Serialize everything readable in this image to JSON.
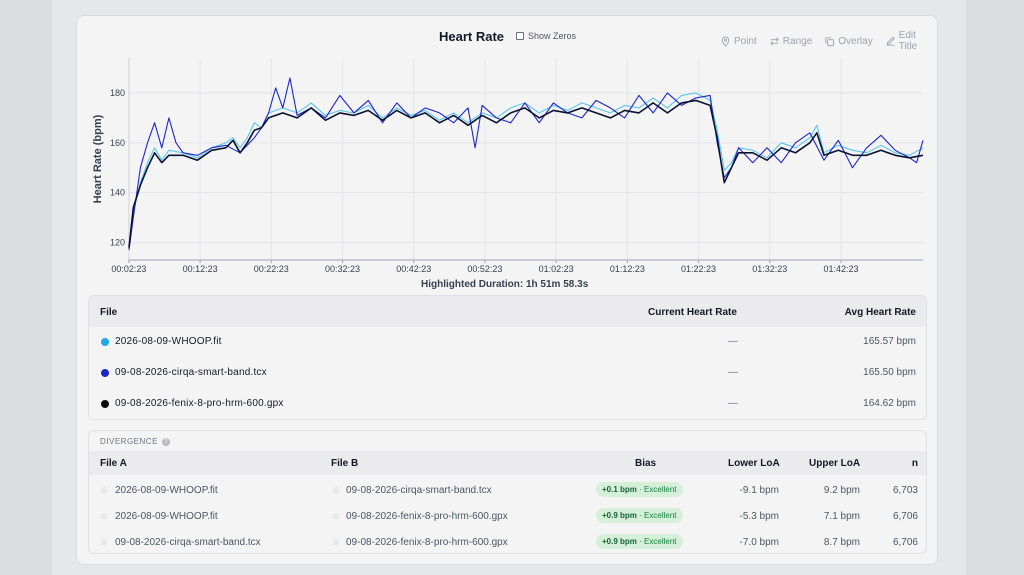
{
  "chart": {
    "title": "Heart Rate",
    "show_zeros_label": "Show Zeros",
    "tools": [
      {
        "label": "Point",
        "icon": "pin-icon"
      },
      {
        "label": "Range",
        "icon": "arrows-icon"
      },
      {
        "label": "Overlay",
        "icon": "copy-icon"
      },
      {
        "label": "Edit Title",
        "icon": "edit-icon"
      }
    ],
    "highlighted_duration": "Highlighted Duration: 1h 51m 58.3s"
  },
  "chart_data": {
    "type": "line",
    "ylabel": "Heart Rate (bpm)",
    "xlabel": "",
    "ylim": [
      113,
      194
    ],
    "y_ticks": [
      120,
      140,
      160,
      180
    ],
    "x_ticks": [
      "00:02:23",
      "00:12:23",
      "00:22:23",
      "00:32:23",
      "00:42:23",
      "00:52:23",
      "01:02:23",
      "01:12:23",
      "01:22:23",
      "01:32:23",
      "01:42:23"
    ],
    "x_range_minutes": [
      2.4,
      113.9
    ],
    "grid": true,
    "series": [
      {
        "name": "2026-08-09-WHOOP.fit",
        "color": "#5bc6ea",
        "points": [
          [
            2.4,
            118
          ],
          [
            3,
            132
          ],
          [
            4,
            144
          ],
          [
            5,
            152
          ],
          [
            6,
            158
          ],
          [
            7,
            153
          ],
          [
            8,
            157
          ],
          [
            10,
            156
          ],
          [
            12,
            154
          ],
          [
            14,
            158
          ],
          [
            16,
            160
          ],
          [
            17,
            162
          ],
          [
            18,
            158
          ],
          [
            19,
            162
          ],
          [
            20,
            168
          ],
          [
            21,
            166
          ],
          [
            22,
            172
          ],
          [
            24,
            174
          ],
          [
            26,
            172
          ],
          [
            28,
            176
          ],
          [
            30,
            171
          ],
          [
            32,
            173
          ],
          [
            34,
            172
          ],
          [
            36,
            175
          ],
          [
            38,
            170
          ],
          [
            40,
            174
          ],
          [
            42,
            171
          ],
          [
            44,
            173
          ],
          [
            46,
            169
          ],
          [
            48,
            172
          ],
          [
            50,
            168
          ],
          [
            52,
            172
          ],
          [
            54,
            170
          ],
          [
            56,
            174
          ],
          [
            58,
            176
          ],
          [
            60,
            172
          ],
          [
            62,
            175
          ],
          [
            64,
            173
          ],
          [
            66,
            176
          ],
          [
            68,
            174
          ],
          [
            70,
            172
          ],
          [
            72,
            175
          ],
          [
            74,
            174
          ],
          [
            76,
            178
          ],
          [
            78,
            174
          ],
          [
            80,
            179
          ],
          [
            82,
            180
          ],
          [
            84,
            177
          ],
          [
            85,
            165
          ],
          [
            86,
            149
          ],
          [
            87,
            152
          ],
          [
            88,
            158
          ],
          [
            90,
            157
          ],
          [
            92,
            154
          ],
          [
            94,
            160
          ],
          [
            96,
            158
          ],
          [
            98,
            162
          ],
          [
            99,
            167
          ],
          [
            100,
            156
          ],
          [
            102,
            159
          ],
          [
            104,
            157
          ],
          [
            106,
            156
          ],
          [
            108,
            159
          ],
          [
            110,
            156
          ],
          [
            112,
            155
          ],
          [
            113.9,
            158
          ]
        ]
      },
      {
        "name": "09-08-2026-cirqa-smart-band.tcx",
        "color": "#1d27c9",
        "points": [
          [
            2.4,
            117
          ],
          [
            3,
            130
          ],
          [
            4,
            150
          ],
          [
            5,
            160
          ],
          [
            6,
            168
          ],
          [
            7,
            158
          ],
          [
            8,
            170
          ],
          [
            9,
            160
          ],
          [
            10,
            156
          ],
          [
            12,
            155
          ],
          [
            14,
            158
          ],
          [
            16,
            159
          ],
          [
            18,
            156
          ],
          [
            20,
            162
          ],
          [
            21,
            166
          ],
          [
            22,
            172
          ],
          [
            23,
            182
          ],
          [
            24,
            174
          ],
          [
            25,
            186
          ],
          [
            26,
            171
          ],
          [
            28,
            174
          ],
          [
            30,
            170
          ],
          [
            32,
            179
          ],
          [
            34,
            172
          ],
          [
            36,
            177
          ],
          [
            38,
            168
          ],
          [
            40,
            176
          ],
          [
            42,
            170
          ],
          [
            44,
            174
          ],
          [
            46,
            172
          ],
          [
            48,
            168
          ],
          [
            50,
            174
          ],
          [
            51,
            158
          ],
          [
            52,
            175
          ],
          [
            54,
            170
          ],
          [
            56,
            168
          ],
          [
            58,
            176
          ],
          [
            60,
            168
          ],
          [
            62,
            176
          ],
          [
            64,
            172
          ],
          [
            66,
            170
          ],
          [
            68,
            177
          ],
          [
            70,
            174
          ],
          [
            72,
            170
          ],
          [
            74,
            179
          ],
          [
            76,
            172
          ],
          [
            78,
            180
          ],
          [
            80,
            175
          ],
          [
            82,
            178
          ],
          [
            84,
            179
          ],
          [
            85,
            160
          ],
          [
            86,
            146
          ],
          [
            87,
            150
          ],
          [
            88,
            158
          ],
          [
            90,
            152
          ],
          [
            92,
            158
          ],
          [
            94,
            152
          ],
          [
            96,
            160
          ],
          [
            98,
            164
          ],
          [
            100,
            153
          ],
          [
            102,
            161
          ],
          [
            104,
            150
          ],
          [
            106,
            158
          ],
          [
            108,
            163
          ],
          [
            110,
            157
          ],
          [
            112,
            154
          ],
          [
            113,
            152
          ],
          [
            113.9,
            161
          ]
        ]
      },
      {
        "name": "09-08-2026-fenix-8-pro-hrm-600.gpx",
        "color": "#0b1230",
        "points": [
          [
            2.4,
            118
          ],
          [
            3,
            134
          ],
          [
            4,
            143
          ],
          [
            5,
            150
          ],
          [
            6,
            156
          ],
          [
            7,
            152
          ],
          [
            8,
            155
          ],
          [
            10,
            155
          ],
          [
            12,
            153
          ],
          [
            14,
            157
          ],
          [
            16,
            158
          ],
          [
            17,
            161
          ],
          [
            18,
            156
          ],
          [
            19,
            160
          ],
          [
            20,
            165
          ],
          [
            21,
            166
          ],
          [
            22,
            170
          ],
          [
            24,
            172
          ],
          [
            26,
            170
          ],
          [
            28,
            174
          ],
          [
            30,
            169
          ],
          [
            32,
            172
          ],
          [
            34,
            171
          ],
          [
            36,
            173
          ],
          [
            38,
            169
          ],
          [
            40,
            173
          ],
          [
            42,
            170
          ],
          [
            44,
            172
          ],
          [
            46,
            168
          ],
          [
            48,
            171
          ],
          [
            50,
            167
          ],
          [
            52,
            171
          ],
          [
            54,
            168
          ],
          [
            56,
            172
          ],
          [
            58,
            174
          ],
          [
            60,
            170
          ],
          [
            62,
            173
          ],
          [
            64,
            172
          ],
          [
            66,
            174
          ],
          [
            68,
            172
          ],
          [
            70,
            170
          ],
          [
            72,
            173
          ],
          [
            74,
            172
          ],
          [
            76,
            176
          ],
          [
            78,
            172
          ],
          [
            80,
            176
          ],
          [
            82,
            177
          ],
          [
            84,
            175
          ],
          [
            85,
            162
          ],
          [
            86,
            144
          ],
          [
            87,
            150
          ],
          [
            88,
            156
          ],
          [
            90,
            156
          ],
          [
            92,
            153
          ],
          [
            94,
            158
          ],
          [
            96,
            156
          ],
          [
            98,
            160
          ],
          [
            99,
            164
          ],
          [
            100,
            155
          ],
          [
            102,
            157
          ],
          [
            104,
            155
          ],
          [
            106,
            155
          ],
          [
            108,
            157
          ],
          [
            110,
            155
          ],
          [
            112,
            154
          ],
          [
            113.9,
            155
          ]
        ]
      }
    ]
  },
  "files": {
    "headers": {
      "file": "File",
      "current": "Current Heart Rate",
      "avg": "Avg Heart Rate"
    },
    "rows": [
      {
        "name": "2026-08-09-WHOOP.fit",
        "color": "#1fa7e6",
        "current": "—",
        "avg": "165.57 bpm"
      },
      {
        "name": "09-08-2026-cirqa-smart-band.tcx",
        "color": "#1d27c9",
        "current": "—",
        "avg": "165.50 bpm"
      },
      {
        "name": "09-08-2026-fenix-8-pro-hrm-600.gpx",
        "color": "#0b0b0b",
        "current": "—",
        "avg": "164.62 bpm"
      }
    ]
  },
  "divergence": {
    "label": "DIVERGENCE",
    "headers": {
      "file_a": "File A",
      "file_b": "File B",
      "bias": "Bias",
      "lower": "Lower LoA",
      "upper": "Upper LoA",
      "n": "n"
    },
    "rows": [
      {
        "file_a": "2026-08-09-WHOOP.fit",
        "file_b": "09-08-2026-cirqa-smart-band.tcx",
        "bias_value": "+0.1 bpm",
        "bias_rating": "· Excellent",
        "lower": "-9.1 bpm",
        "upper": "9.2 bpm",
        "n": "6,703"
      },
      {
        "file_a": "2026-08-09-WHOOP.fit",
        "file_b": "09-08-2026-fenix-8-pro-hrm-600.gpx",
        "bias_value": "+0.9 bpm",
        "bias_rating": "· Excellent",
        "lower": "-5.3 bpm",
        "upper": "7.1 bpm",
        "n": "6,706"
      },
      {
        "file_a": "09-08-2026-cirqa-smart-band.tcx",
        "file_b": "09-08-2026-fenix-8-pro-hrm-600.gpx",
        "bias_value": "+0.9 bpm",
        "bias_rating": "· Excellent",
        "lower": "-7.0 bpm",
        "upper": "8.7 bpm",
        "n": "6,706"
      }
    ]
  }
}
